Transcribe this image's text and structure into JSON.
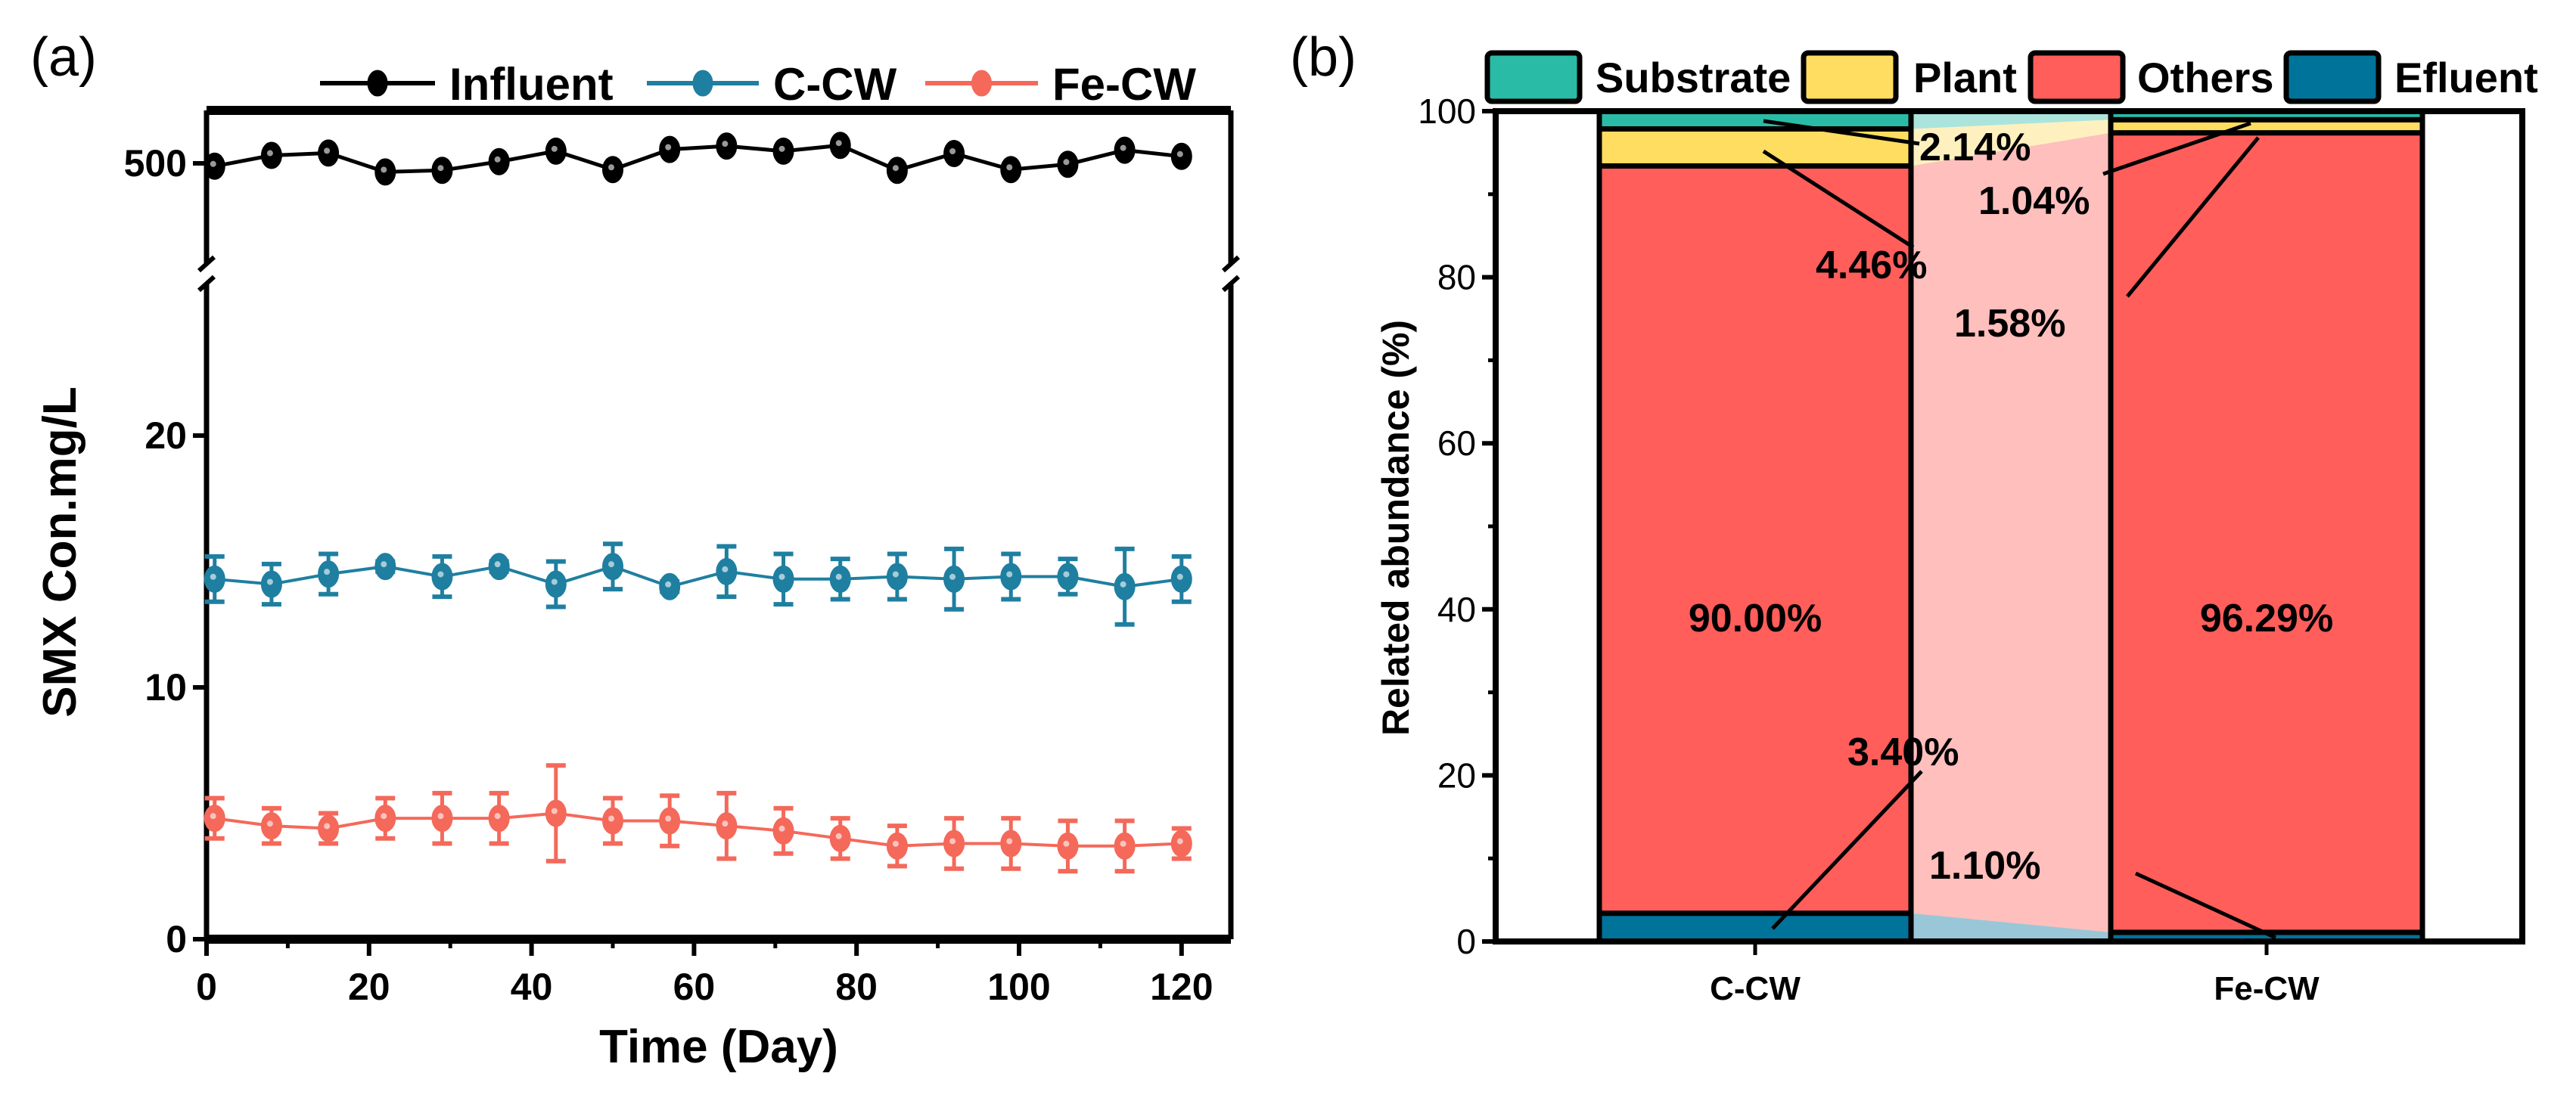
{
  "chart_data": [
    {
      "type": "line",
      "panel_label": "(a)",
      "xlabel": "Time (Day)",
      "ylabel": "SMX Con.mg/L",
      "x_ticks": [
        "0",
        "20",
        "40",
        "60",
        "80",
        "100",
        "120"
      ],
      "y_ticks_lower": [
        "0",
        "10",
        "20"
      ],
      "y_ticks_upper": [
        "500"
      ],
      "xlim": [
        0,
        125
      ],
      "ylim_lower": [
        0,
        27
      ],
      "ylim_upper": [
        466,
        540
      ],
      "axis_break": true,
      "legend_position": "top",
      "x": [
        1,
        8,
        15,
        22,
        29,
        36,
        43,
        50,
        57,
        64,
        71,
        78,
        85,
        92,
        99,
        106,
        113,
        120
      ],
      "series": [
        {
          "name": "Influent",
          "color": "#000000",
          "values": [
            498.8,
            503.3,
            504.3,
            496.4,
            497.1,
            500.7,
            505.1,
            497.4,
            505.8,
            507.2,
            505.1,
            507.5,
            497.1,
            504.1,
            497.4,
            499.6,
            505.5,
            502.9
          ]
        },
        {
          "name": "C-CW",
          "color": "#1f7fa0",
          "values": [
            14.3,
            14.1,
            14.5,
            14.8,
            14.4,
            14.8,
            14.1,
            14.8,
            14.0,
            14.6,
            14.3,
            14.3,
            14.4,
            14.3,
            14.4,
            14.4,
            14.0,
            14.3
          ],
          "errors": [
            0.9,
            0.8,
            0.8,
            0.2,
            0.8,
            0.2,
            0.9,
            0.9,
            0.2,
            1.0,
            1.0,
            0.8,
            0.9,
            1.2,
            0.9,
            0.7,
            1.5,
            0.9
          ]
        },
        {
          "name": "Fe-CW",
          "color": "#f4695a",
          "values": [
            4.8,
            4.5,
            4.4,
            4.8,
            4.8,
            4.8,
            5.0,
            4.7,
            4.7,
            4.5,
            4.3,
            4.0,
            3.7,
            3.8,
            3.8,
            3.7,
            3.7,
            3.8
          ],
          "errors": [
            0.8,
            0.7,
            0.6,
            0.8,
            1.0,
            1.0,
            1.9,
            0.9,
            1.0,
            1.3,
            0.9,
            0.8,
            0.8,
            1.0,
            1.0,
            1.0,
            1.0,
            0.6
          ]
        }
      ]
    },
    {
      "type": "bar",
      "stacked": true,
      "panel_label": "(b)",
      "ylabel": "Related abundance (%)",
      "xlabel": "",
      "ylim": [
        0,
        100
      ],
      "y_ticks": [
        "0",
        "20",
        "40",
        "60",
        "80",
        "100"
      ],
      "categories": [
        "C-CW",
        "Fe-CW"
      ],
      "legend_position": "top",
      "series": [
        {
          "name": "Efluent",
          "color": "#00739a",
          "values": [
            3.4,
            1.1
          ],
          "labels": [
            "3.40%",
            "1.10%"
          ]
        },
        {
          "name": "Others",
          "color": "#ff5e5b",
          "values": [
            90.0,
            96.29
          ],
          "labels": [
            "90.00%",
            "96.29%"
          ]
        },
        {
          "name": "Plant",
          "color": "#ffdd60",
          "values": [
            4.46,
            1.58
          ],
          "labels": [
            "4.46%",
            "1.58%"
          ]
        },
        {
          "name": "Substrate",
          "color": "#2abba7",
          "values": [
            2.14,
            1.04
          ],
          "labels": [
            "2.14%",
            "1.04%"
          ]
        }
      ],
      "legend_order": [
        "Substrate",
        "Plant",
        "Others",
        "Efluent"
      ]
    }
  ]
}
